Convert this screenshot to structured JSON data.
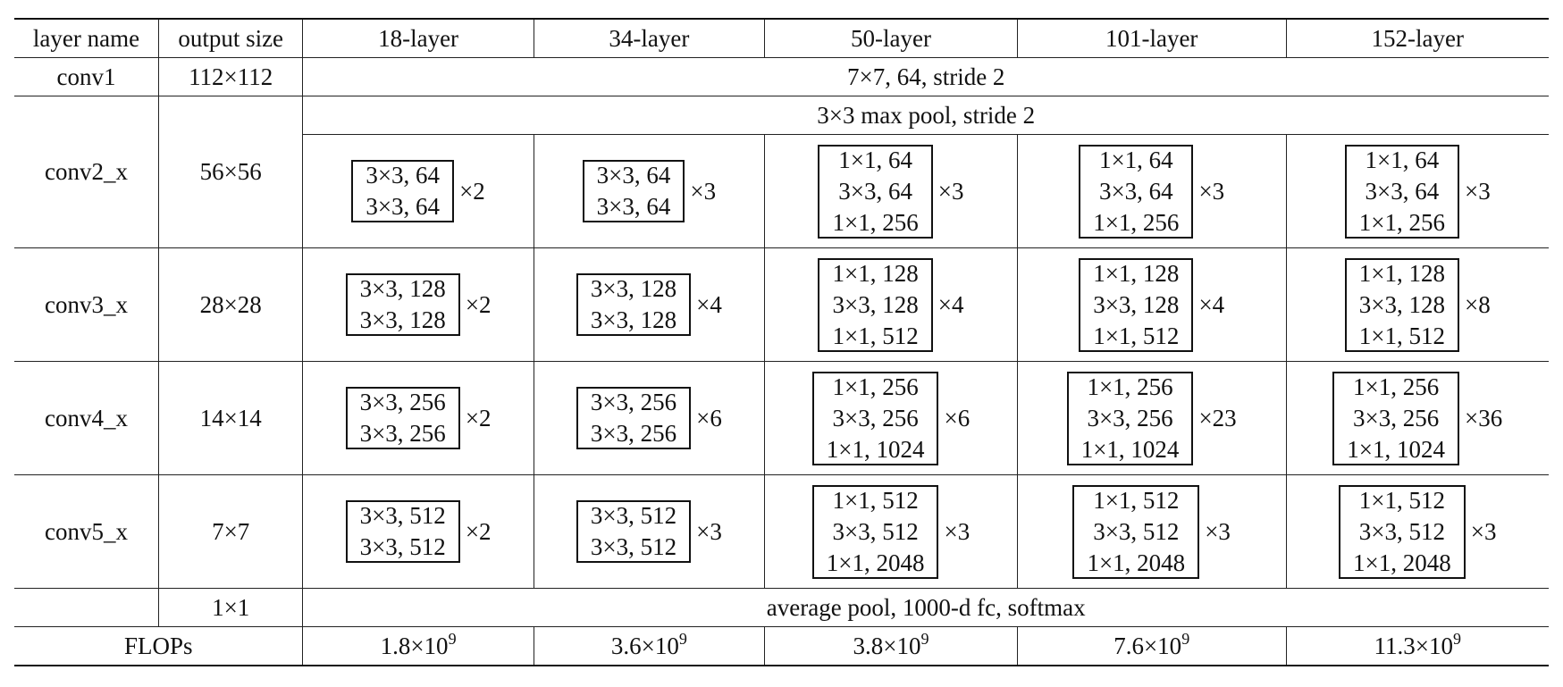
{
  "header": {
    "layer_name": "layer name",
    "output_size": "output size",
    "cols": [
      "18-layer",
      "34-layer",
      "50-layer",
      "101-layer",
      "152-layer"
    ]
  },
  "conv1": {
    "name": "conv1",
    "size": "112×112",
    "spec": "7×7, 64, stride 2"
  },
  "conv2": {
    "name": "conv2_x",
    "size": "56×56",
    "pool": "3×3 max pool, stride 2",
    "cells": [
      {
        "lines": [
          "3×3, 64",
          "3×3, 64"
        ],
        "mult": "×2"
      },
      {
        "lines": [
          "3×3, 64",
          "3×3, 64"
        ],
        "mult": "×3"
      },
      {
        "lines": [
          "1×1, 64",
          "3×3, 64",
          "1×1, 256"
        ],
        "mult": "×3"
      },
      {
        "lines": [
          "1×1, 64",
          "3×3, 64",
          "1×1, 256"
        ],
        "mult": "×3"
      },
      {
        "lines": [
          "1×1, 64",
          "3×3, 64",
          "1×1, 256"
        ],
        "mult": "×3"
      }
    ]
  },
  "conv3": {
    "name": "conv3_x",
    "size": "28×28",
    "cells": [
      {
        "lines": [
          "3×3, 128",
          "3×3, 128"
        ],
        "mult": "×2"
      },
      {
        "lines": [
          "3×3, 128",
          "3×3, 128"
        ],
        "mult": "×4"
      },
      {
        "lines": [
          "1×1, 128",
          "3×3, 128",
          "1×1, 512"
        ],
        "mult": "×4"
      },
      {
        "lines": [
          "1×1, 128",
          "3×3, 128",
          "1×1, 512"
        ],
        "mult": "×4"
      },
      {
        "lines": [
          "1×1, 128",
          "3×3, 128",
          "1×1, 512"
        ],
        "mult": "×8"
      }
    ]
  },
  "conv4": {
    "name": "conv4_x",
    "size": "14×14",
    "cells": [
      {
        "lines": [
          "3×3, 256",
          "3×3, 256"
        ],
        "mult": "×2"
      },
      {
        "lines": [
          "3×3, 256",
          "3×3, 256"
        ],
        "mult": "×6"
      },
      {
        "lines": [
          "1×1, 256",
          "3×3, 256",
          "1×1, 1024"
        ],
        "mult": "×6"
      },
      {
        "lines": [
          "1×1, 256",
          "3×3, 256",
          "1×1, 1024"
        ],
        "mult": "×23"
      },
      {
        "lines": [
          "1×1, 256",
          "3×3, 256",
          "1×1, 1024"
        ],
        "mult": "×36"
      }
    ]
  },
  "conv5": {
    "name": "conv5_x",
    "size": "7×7",
    "cells": [
      {
        "lines": [
          "3×3, 512",
          "3×3, 512"
        ],
        "mult": "×2"
      },
      {
        "lines": [
          "3×3, 512",
          "3×3, 512"
        ],
        "mult": "×3"
      },
      {
        "lines": [
          "1×1, 512",
          "3×3, 512",
          "1×1, 2048"
        ],
        "mult": "×3"
      },
      {
        "lines": [
          "1×1, 512",
          "3×3, 512",
          "1×1, 2048"
        ],
        "mult": "×3"
      },
      {
        "lines": [
          "1×1, 512",
          "3×3, 512",
          "1×1, 2048"
        ],
        "mult": "×3"
      }
    ]
  },
  "final": {
    "name": "",
    "size": "1×1",
    "spec": "average pool, 1000-d fc, softmax"
  },
  "flops": {
    "label": "FLOPs",
    "values": [
      {
        "mantissa": "1.8×10",
        "exp": "9"
      },
      {
        "mantissa": "3.6×10",
        "exp": "9"
      },
      {
        "mantissa": "3.8×10",
        "exp": "9"
      },
      {
        "mantissa": "7.6×10",
        "exp": "9"
      },
      {
        "mantissa": "11.3×10",
        "exp": "9"
      }
    ]
  }
}
